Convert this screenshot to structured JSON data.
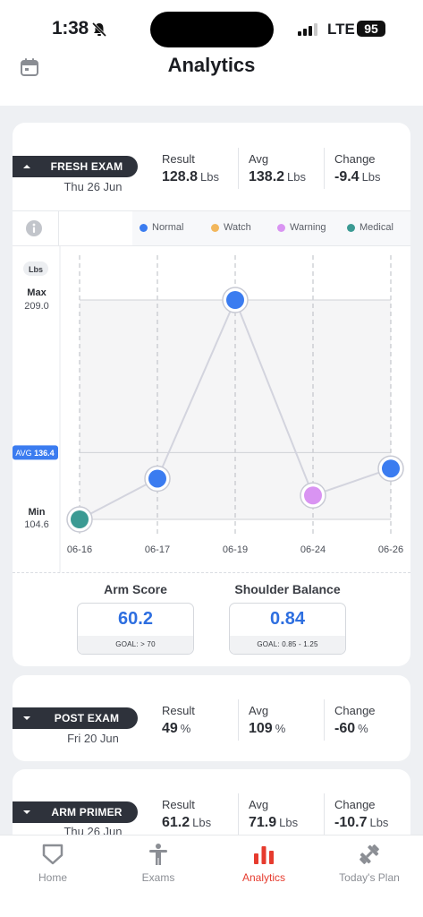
{
  "status_bar": {
    "time": "1:38",
    "network": "LTE",
    "battery": "95"
  },
  "header": {
    "title": "Analytics"
  },
  "colors": {
    "normal": "#3b7cf0",
    "watch": "#f2b75c",
    "warning": "#d994f2",
    "medical": "#3b9a93",
    "accent": "#e63b2e",
    "pill": "#2e323b"
  },
  "main_card": {
    "exam_name": "FRESH EXAM",
    "exam_date": "Thu 26 Jun",
    "stats": [
      {
        "label": "Result",
        "value": "128.8",
        "unit": "Lbs"
      },
      {
        "label": "Avg",
        "value": "138.2",
        "unit": "Lbs"
      },
      {
        "label": "Change",
        "value": "-9.4",
        "unit": "Lbs"
      }
    ],
    "legend": [
      {
        "name": "Normal",
        "color": "#3b7cf0"
      },
      {
        "name": "Watch",
        "color": "#f2b75c"
      },
      {
        "name": "Warning",
        "color": "#d994f2"
      },
      {
        "name": "Medical",
        "color": "#3b9a93"
      }
    ],
    "chart_labels": {
      "unit": "Lbs",
      "max_label": "Max",
      "max_value": "209.0",
      "avg_label": "AVG",
      "avg_value": "136.4",
      "min_label": "Min",
      "min_value": "104.6"
    },
    "metrics": [
      {
        "title": "Arm Score",
        "value": "60.2",
        "goal": "GOAL: > 70"
      },
      {
        "title": "Shoulder Balance",
        "value": "0.84",
        "goal": "GOAL: 0.85 - 1.25"
      }
    ]
  },
  "chart_data": {
    "type": "line",
    "categories": [
      "06-16",
      "06-17",
      "06-19",
      "06-24",
      "06-26"
    ],
    "values": [
      104.6,
      124.0,
      209.0,
      116.0,
      128.8
    ],
    "point_status": [
      "medical",
      "normal",
      "normal",
      "warning",
      "normal"
    ],
    "y_max": 209.0,
    "y_min": 104.6,
    "avg": 136.4,
    "ylabel": "Lbs"
  },
  "other_cards": [
    {
      "exam_name": "POST EXAM",
      "exam_date": "Fri 20 Jun",
      "stats": [
        {
          "label": "Result",
          "value": "49",
          "unit": "%"
        },
        {
          "label": "Avg",
          "value": "109",
          "unit": "%"
        },
        {
          "label": "Change",
          "value": "-60",
          "unit": "%"
        }
      ]
    },
    {
      "exam_name": "ARM PRIMER",
      "exam_date": "Thu 26 Jun",
      "stats": [
        {
          "label": "Result",
          "value": "61.2",
          "unit": "Lbs"
        },
        {
          "label": "Avg",
          "value": "71.9",
          "unit": "Lbs"
        },
        {
          "label": "Change",
          "value": "-10.7",
          "unit": "Lbs"
        }
      ]
    }
  ],
  "tabs": [
    {
      "label": "Home",
      "icon": "home-plate-icon",
      "active": false
    },
    {
      "label": "Exams",
      "icon": "person-icon",
      "active": false
    },
    {
      "label": "Analytics",
      "icon": "bar-chart-icon",
      "active": true
    },
    {
      "label": "Today's Plan",
      "icon": "dumbbell-icon",
      "active": false
    }
  ]
}
